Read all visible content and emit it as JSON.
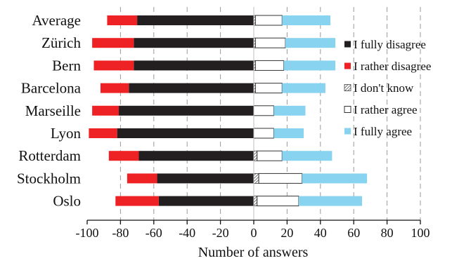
{
  "chart_data": {
    "type": "bar",
    "orientation": "horizontal",
    "stacked": "diverging",
    "xlabel": "Number of answers",
    "ylabel": "",
    "xlim": [
      -100,
      100
    ],
    "xticks": [
      -100,
      -80,
      -60,
      -40,
      -20,
      0,
      20,
      40,
      60,
      80,
      100
    ],
    "grid": "vertical dashed",
    "legend_position": "right",
    "categories": [
      "Average",
      "Zürich",
      "Bern",
      "Barcelona",
      "Marseille",
      "Lyon",
      "Rotterdam",
      "Stockholm",
      "Oslo"
    ],
    "series": [
      {
        "name": "I fully  disagree",
        "color": "#231f20",
        "pattern": "solid",
        "values": [
          -70,
          -72,
          -72,
          -75,
          -81,
          -82,
          -69,
          -58,
          -57
        ]
      },
      {
        "name": "I rather disagree",
        "color": "#ee2224",
        "pattern": "solid",
        "values": [
          -18,
          -25,
          -24,
          -17,
          -16,
          -17,
          -18,
          -18,
          -26
        ]
      },
      {
        "name": "I don't know",
        "color": "#888888",
        "pattern": "hatch",
        "values": [
          1,
          1,
          1,
          1,
          0,
          0,
          2,
          3,
          2
        ]
      },
      {
        "name": "I rather agree",
        "color": "#ffffff",
        "pattern": "outline",
        "values": [
          16,
          18,
          17,
          16,
          12,
          12,
          15,
          26,
          25
        ]
      },
      {
        "name": "I fully agree",
        "color": "#87d3f0",
        "pattern": "solid",
        "values": [
          29,
          30,
          31,
          26,
          19,
          18,
          30,
          39,
          38
        ]
      }
    ]
  }
}
